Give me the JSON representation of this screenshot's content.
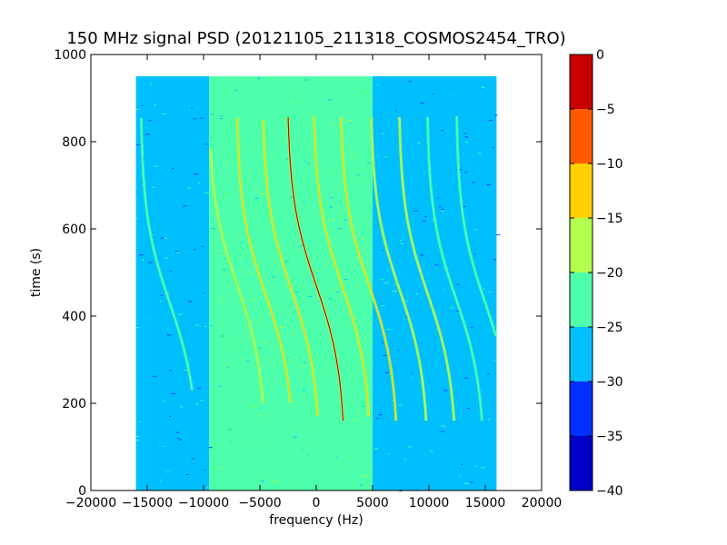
{
  "chart_data": {
    "type": "heatmap",
    "title": "150 MHz signal PSD (20121105_211318_COSMOS2454_TRO)",
    "xlabel": "frequency (Hz)",
    "ylabel": "time (s)",
    "xlim": [
      -20000,
      20000
    ],
    "ylim": [
      0,
      1000
    ],
    "x_ticks": [
      -20000,
      -15000,
      -10000,
      -5000,
      0,
      5000,
      10000,
      15000,
      20000
    ],
    "x_tick_labels": [
      "−20000",
      "−15000",
      "−10000",
      "−5000",
      "0",
      "5000",
      "10000",
      "15000",
      "20000"
    ],
    "y_ticks": [
      0,
      200,
      400,
      600,
      800,
      1000
    ],
    "y_tick_labels": [
      "0",
      "200",
      "400",
      "600",
      "800",
      "1000"
    ],
    "data_extent": {
      "x": [
        -16000,
        16000
      ],
      "y": [
        0,
        950
      ]
    },
    "colorbar": {
      "levels": [
        -40,
        -35,
        -30,
        -25,
        -20,
        -15,
        -10,
        -5,
        0
      ],
      "tick_labels": [
        "−40",
        "−35",
        "−30",
        "−25",
        "−20",
        "−15",
        "−10",
        "−5",
        "0"
      ],
      "colors": [
        "#0000c8",
        "#0030ff",
        "#00bfff",
        "#4dffaa",
        "#b2ff4d",
        "#ffd000",
        "#ff5a00",
        "#c80000"
      ]
    },
    "background_regions": [
      {
        "x": [
          -16000,
          -9500
        ],
        "level": -27.5
      },
      {
        "x": [
          -9500,
          5000
        ],
        "level": -22.5
      },
      {
        "x": [
          5000,
          16000
        ],
        "level": -27.5
      }
    ],
    "traces": [
      {
        "name": "",
        "center_freq": 0,
        "center_time": 470,
        "time_range": [
          160,
          860
        ],
        "peak_level": -2.5
      },
      {
        "name": "",
        "center_freq": -2200,
        "center_time": 460,
        "time_range": [
          170,
          850
        ],
        "peak_level": -12.5
      },
      {
        "name": "",
        "center_freq": 2300,
        "center_time": 470,
        "time_range": [
          170,
          860
        ],
        "peak_level": -12.5
      },
      {
        "name": "",
        "center_freq": -4500,
        "center_time": 450,
        "time_range": [
          200,
          860
        ],
        "peak_level": -12.5
      },
      {
        "name": "",
        "center_freq": 4700,
        "center_time": 470,
        "time_range": [
          160,
          860
        ],
        "peak_level": -12.5
      },
      {
        "name": "",
        "center_freq": -7000,
        "center_time": 470,
        "time_range": [
          200,
          790
        ],
        "peak_level": -17.5
      },
      {
        "name": "",
        "center_freq": 7400,
        "center_time": 460,
        "time_range": [
          160,
          860
        ],
        "peak_level": -17.5
      },
      {
        "name": "",
        "center_freq": 9900,
        "center_time": 450,
        "time_range": [
          160,
          860
        ],
        "peak_level": -17.5
      },
      {
        "name": "",
        "center_freq": 12400,
        "center_time": 440,
        "time_range": [
          160,
          860
        ],
        "peak_level": -22.5
      },
      {
        "name": "",
        "center_freq": -13000,
        "center_time": 430,
        "time_range": [
          230,
          860
        ],
        "peak_level": -22.5
      },
      {
        "name": "",
        "center_freq": 15000,
        "center_time": 430,
        "time_range": [
          250,
          860
        ],
        "peak_level": -22.5
      }
    ]
  }
}
